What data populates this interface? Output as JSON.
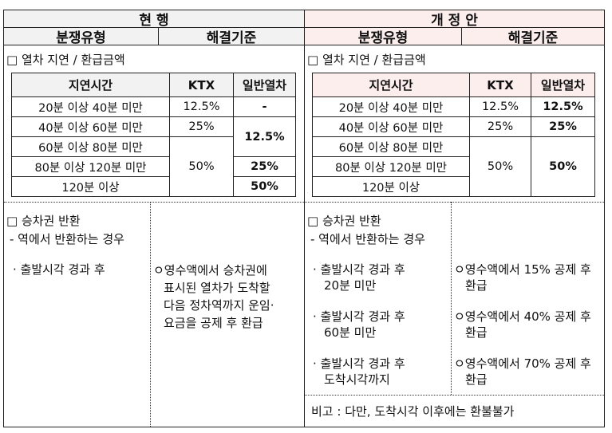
{
  "current": {
    "title": "현  행",
    "col1": "분쟁유형",
    "col2": "해결기준",
    "delay_heading": "□ 열차 지연 / 환급금액",
    "table": {
      "headers": [
        "지연시간",
        "KTX",
        "일반열차"
      ],
      "rows": [
        "20분 이상 40분 미만",
        "40분 이상 60분 미만",
        "60분 이상 80분 미만",
        "80분 이상 120분 미만",
        "120분 이상"
      ],
      "ktx": [
        "12.5%",
        "25%",
        "50%"
      ],
      "regular": [
        "-",
        "12.5%",
        "25%",
        "50%"
      ]
    },
    "refund_heading": "□ 승차권 반환",
    "refund_sub": "- 역에서 반환하는 경우",
    "refund_case": "· 출발시각 경과 후",
    "refund_rule": [
      "ㅇ영수액에서 승차권에",
      "표시된 열차가 도착할",
      "다음 정차역까지 운임·",
      "요금을 공제 후 환급"
    ]
  },
  "revised": {
    "title": "개 정 안",
    "col1": "분쟁유형",
    "col2": "해결기준",
    "delay_heading": "□ 열차 지연 / 환급금액",
    "table": {
      "headers": [
        "지연시간",
        "KTX",
        "일반열차"
      ],
      "rows": [
        "20분 이상 40분 미만",
        "40분 이상 60분 미만",
        "60분 이상 80분 미만",
        "80분 이상 120분 미만",
        "120분 이상"
      ],
      "ktx": [
        "12.5%",
        "25%",
        "50%"
      ],
      "regular": [
        "12.5%",
        "25%",
        "50%"
      ]
    },
    "refund_heading": "□ 승차권 반환",
    "refund_sub": "- 역에서 반환하는 경우",
    "cases": [
      [
        "· 출발시각 경과 후",
        "20분 미만"
      ],
      [
        "· 출발시각 경과 후",
        "60분 미만"
      ],
      [
        "· 출발시각 경과 후",
        "도착시각까지"
      ]
    ],
    "rules": [
      [
        "ㅇ영수액에서 15% 공제 후",
        "환급"
      ],
      [
        "ㅇ영수액에서 40% 공제 후",
        "환급"
      ],
      [
        "ㅇ영수액에서 70% 공제 후",
        "환급"
      ]
    ],
    "note": "비고 : 다만, 도착시각 이후에는 환불불가"
  },
  "colors": {
    "current_header": "#f2f2f2",
    "revised_header": "#fdeeee"
  }
}
